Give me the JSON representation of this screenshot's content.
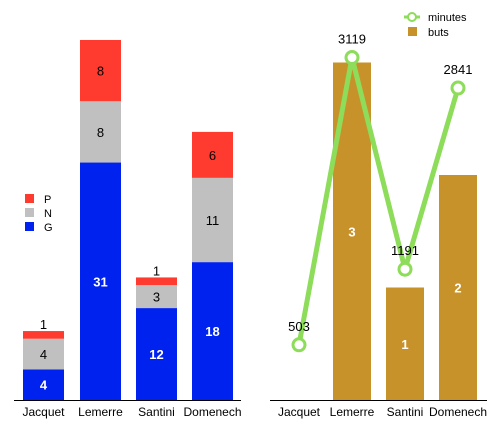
{
  "colors": {
    "P": "#ff3b30",
    "N": "#c0c0c0",
    "G": "#0022ee",
    "minutes": "#8ddc5a",
    "buts": "#c8922a",
    "axis": "#000000"
  },
  "chart_data": [
    {
      "type": "bar",
      "stacked": true,
      "categories": [
        "Jacquet",
        "Lemerre",
        "Santini",
        "Domenech"
      ],
      "series": [
        {
          "name": "G",
          "values": [
            4,
            31,
            12,
            18
          ]
        },
        {
          "name": "N",
          "values": [
            4,
            8,
            3,
            11
          ]
        },
        {
          "name": "P",
          "values": [
            1,
            8,
            1,
            6
          ]
        }
      ],
      "legend": {
        "position": "left",
        "entries": [
          "P",
          "N",
          "G"
        ]
      },
      "grid": false
    },
    {
      "type": "bar",
      "categories": [
        "Jacquet",
        "Lemerre",
        "Santini",
        "Domenech"
      ],
      "series": [
        {
          "name": "buts",
          "type": "bar",
          "values": [
            0,
            3,
            1,
            2
          ]
        },
        {
          "name": "minutes",
          "type": "line",
          "values": [
            503,
            3119,
            1191,
            2841
          ]
        }
      ],
      "legend": {
        "position": "top-right",
        "entries": [
          "minutes",
          "buts"
        ]
      },
      "grid": false
    }
  ]
}
